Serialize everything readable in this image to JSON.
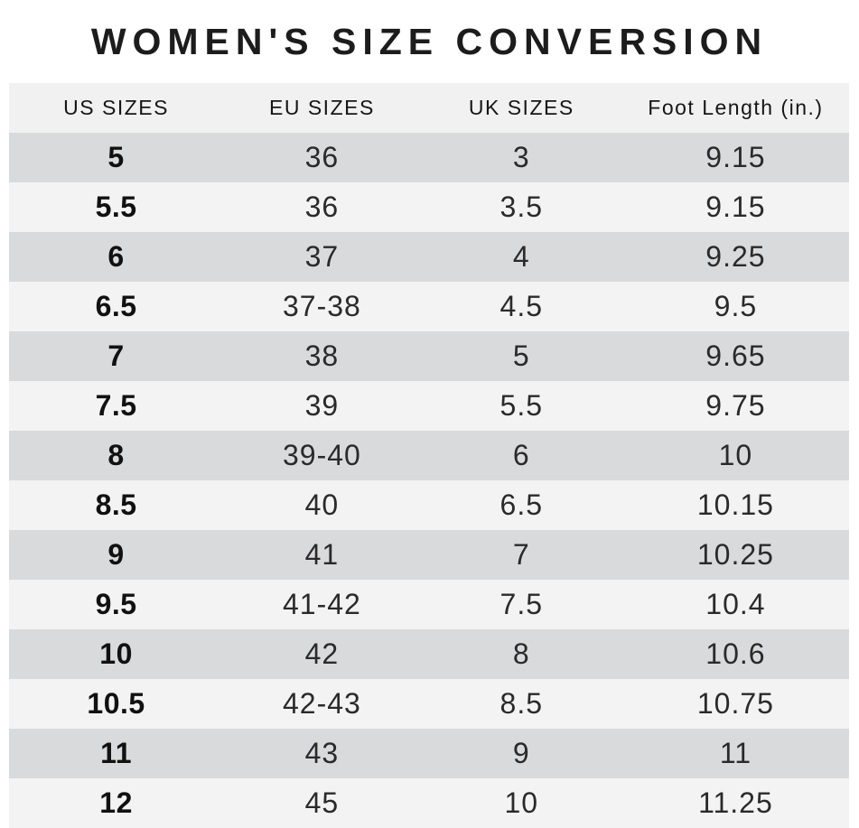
{
  "title": "WOMEN'S SIZE CONVERSION",
  "chart_data": {
    "type": "table",
    "title": "WOMEN'S SIZE CONVERSION",
    "columns": [
      "US SIZES",
      "EU SIZES",
      "UK SIZES",
      "Foot Length (in.)"
    ],
    "rows": [
      [
        "5",
        "36",
        "3",
        "9.15"
      ],
      [
        "5.5",
        "36",
        "3.5",
        "9.15"
      ],
      [
        "6",
        "37",
        "4",
        "9.25"
      ],
      [
        "6.5",
        "37-38",
        "4.5",
        "9.5"
      ],
      [
        "7",
        "38",
        "5",
        "9.65"
      ],
      [
        "7.5",
        "39",
        "5.5",
        "9.75"
      ],
      [
        "8",
        "39-40",
        "6",
        "10"
      ],
      [
        "8.5",
        "40",
        "6.5",
        "10.15"
      ],
      [
        "9",
        "41",
        "7",
        "10.25"
      ],
      [
        "9.5",
        "41-42",
        "7.5",
        "10.4"
      ],
      [
        "10",
        "42",
        "8",
        "10.6"
      ],
      [
        "10.5",
        "42-43",
        "8.5",
        "10.75"
      ],
      [
        "11",
        "43",
        "9",
        "11"
      ],
      [
        "12",
        "45",
        "10",
        "11.25"
      ]
    ],
    "layout": {
      "row_striping": "first-data-row-dark",
      "header_position": "top"
    }
  },
  "colors": {
    "title_text": "#1c1c1c",
    "header_bg": "#f1f1f1",
    "header_text": "#161616",
    "row_dark": "#d9dadc",
    "row_light": "#f3f3f3",
    "cell_text": "#2a2a2a",
    "us_text": "#111111",
    "page_bg": "#ffffff"
  }
}
